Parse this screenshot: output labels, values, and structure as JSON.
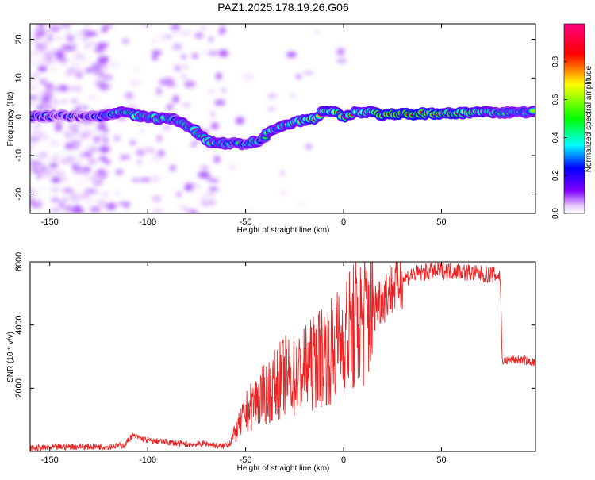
{
  "figure": {
    "title": "PAZ1.2025.178.19.26.G06"
  },
  "chart_data": [
    {
      "type": "heatmap",
      "xlabel": "Height of straight line (km)",
      "ylabel": "Frequency (Hz)",
      "xlim": [
        -160,
        98
      ],
      "ylim": [
        -25,
        24
      ],
      "xticks": [
        -150,
        -100,
        -50,
        0,
        50
      ],
      "yticks": [
        -20,
        -10,
        0,
        10,
        20
      ],
      "colorbar": {
        "label": "Normalized spectral amplitude",
        "range": [
          0,
          1
        ],
        "ticks": [
          0.0,
          0.2,
          0.4,
          0.6,
          0.8
        ],
        "tick_labels": [
          "0.0",
          "0.2",
          "0.4",
          "0.6",
          "0.8"
        ],
        "colors": [
          "#ffffff",
          "#8000ff",
          "#0000ff",
          "#00ffff",
          "#00ff00",
          "#ffff00",
          "#ff0000",
          "#ff0080"
        ]
      },
      "ridge": {
        "x": [
          -155,
          -145,
          -135,
          -125,
          -115,
          -105,
          -95,
          -85,
          -75,
          -68,
          -60,
          -50,
          -42,
          -36,
          -30,
          -25,
          -20,
          -15,
          -10,
          -5,
          0,
          5,
          10,
          15,
          20,
          30,
          40,
          50,
          60,
          70,
          80,
          90,
          98
        ],
        "y": [
          0,
          0.2,
          0,
          0,
          1.2,
          0.3,
          -0.5,
          -0.8,
          -4,
          -6.5,
          -7,
          -7,
          -6,
          -3,
          -2.5,
          -1.5,
          -1,
          -0.5,
          1.5,
          1.5,
          -0.2,
          1,
          1.2,
          1.3,
          0.5,
          0.6,
          0.7,
          0.8,
          0.9,
          1.0,
          1.1,
          1.2,
          1.3
        ],
        "amplitude": [
          0.35,
          0.3,
          0.3,
          0.35,
          0.55,
          0.6,
          0.55,
          0.5,
          0.55,
          0.6,
          0.55,
          0.45,
          0.5,
          0.55,
          0.6,
          0.65,
          0.7,
          0.75,
          0.7,
          0.65,
          0.8,
          0.75,
          0.7,
          0.75,
          0.9,
          0.9,
          0.9,
          0.85,
          0.8,
          0.7,
          0.55,
          0.55,
          0.5
        ]
      }
    },
    {
      "type": "line",
      "xlabel": "Height of straight line (km)",
      "ylabel": "SNR (10 * v/v)",
      "xlim": [
        -160,
        98
      ],
      "ylim": [
        0,
        6000
      ],
      "xticks": [
        -150,
        -100,
        -50,
        0,
        50
      ],
      "yticks": [
        2000,
        4000,
        6000
      ],
      "color": "#ee2222",
      "series": [
        {
          "x": [
            -160,
            -150,
            -140,
            -130,
            -120,
            -112,
            -108,
            -100,
            -90,
            -80,
            -70,
            -62,
            -58,
            -55,
            -50,
            -45,
            -40,
            -35,
            -30,
            -25,
            -20,
            -15,
            -10,
            -5,
            0,
            5,
            10,
            15,
            20,
            25,
            30,
            35,
            40,
            45,
            50,
            55,
            60,
            65,
            70,
            75,
            80,
            81,
            82,
            85,
            90,
            95,
            98
          ],
          "y": [
            100,
            120,
            150,
            150,
            150,
            200,
            500,
            350,
            300,
            220,
            250,
            150,
            300,
            600,
            1200,
            1600,
            1800,
            2100,
            2400,
            2300,
            2600,
            2800,
            3100,
            3200,
            3600,
            3900,
            4200,
            4600,
            4900,
            5200,
            5450,
            5600,
            5650,
            5700,
            5720,
            5720,
            5700,
            5650,
            5600,
            5600,
            5550,
            2900,
            2850,
            2900,
            2900,
            2850,
            2800
          ]
        }
      ]
    }
  ]
}
